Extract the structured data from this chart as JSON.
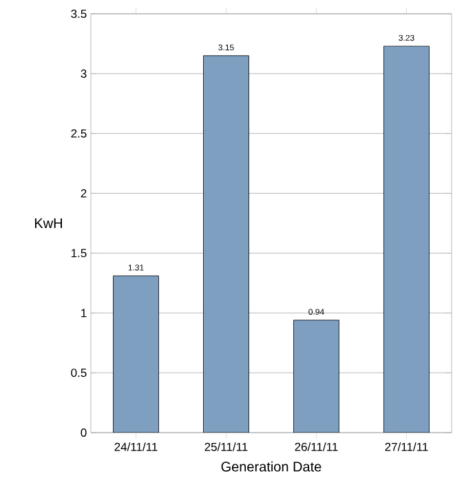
{
  "chart_data": {
    "type": "bar",
    "xlabel": "Generation Date",
    "ylabel": "KwH",
    "categories": [
      "24/11/11",
      "25/11/11",
      "26/11/11",
      "27/11/11"
    ],
    "values": [
      1.31,
      3.15,
      0.94,
      3.23
    ],
    "color": "#7f9fc1",
    "ylim": [
      0,
      3.5
    ],
    "yticks": [
      0,
      0.5,
      1,
      1.5,
      2,
      2.5,
      3,
      3.5
    ],
    "grid": "y",
    "data_labels": true
  }
}
